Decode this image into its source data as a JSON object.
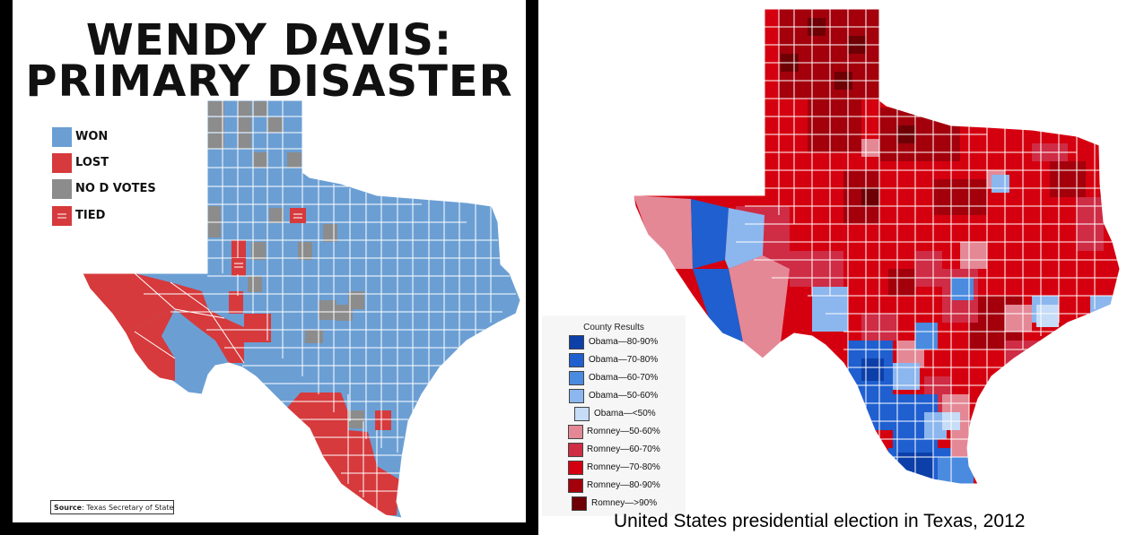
{
  "left_map": {
    "title_line1": "WENDY DAVIS:",
    "title_line2": "PRIMARY DISASTER",
    "legend": [
      {
        "label": "WON",
        "color": "#6b9fd4",
        "icon": "none"
      },
      {
        "label": "LOST",
        "color": "#d63a3c",
        "icon": "none"
      },
      {
        "label": "NO D VOTES",
        "color": "#8c8c8c",
        "icon": "none"
      },
      {
        "label": "TIED",
        "color": "#d63a3c",
        "icon": "equals-icon"
      }
    ],
    "source_label": "Source",
    "source_text": ": Texas Secretary of State",
    "colors": {
      "won": "#6b9fd4",
      "lost": "#d63a3c",
      "no_votes": "#8c8c8c",
      "border": "#ffffff"
    }
  },
  "right_map": {
    "legend_title": "County Results",
    "legend": [
      {
        "label": "Obama—80-90%",
        "color": "#0d3fa8"
      },
      {
        "label": "Obama—70-80%",
        "color": "#1f5fcf"
      },
      {
        "label": "Obama—60-70%",
        "color": "#4a8be0"
      },
      {
        "label": "Obama—50-60%",
        "color": "#8cb6ee"
      },
      {
        "label": "Obama—<50%",
        "color": "#c6dcf7"
      },
      {
        "label": "Romney—50-60%",
        "color": "#e48896"
      },
      {
        "label": "Romney—60-70%",
        "color": "#cf2c45"
      },
      {
        "label": "Romney—70-80%",
        "color": "#d5000f"
      },
      {
        "label": "Romney—80-90%",
        "color": "#a3000c"
      },
      {
        "label": "Romney—>90%",
        "color": "#6e0005"
      }
    ],
    "caption": "United States presidential election in Texas, 2012"
  }
}
